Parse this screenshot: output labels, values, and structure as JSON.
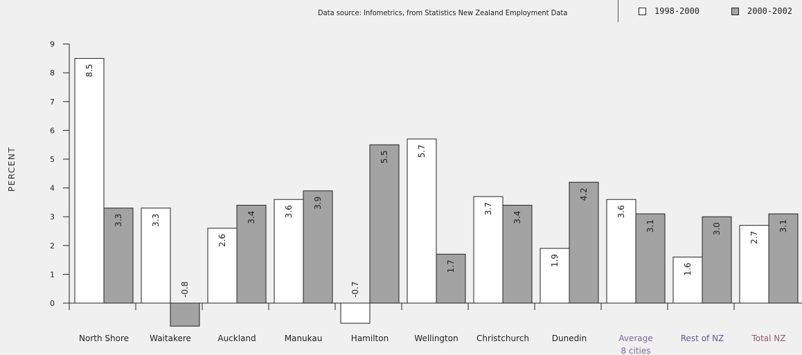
{
  "header": {
    "source": "Data source: Infometrics, from Statistics New Zealand Employment Data"
  },
  "legend": [
    {
      "label": "1998-2000",
      "color": "#ffffff"
    },
    {
      "label": "2000-2002",
      "color": "#a3a3a3"
    }
  ],
  "chart_data": {
    "type": "bar",
    "title": "",
    "xlabel": "",
    "ylabel": "PERCENT",
    "ylim": [
      -0.8,
      9
    ],
    "yticks": [
      0,
      1,
      2,
      3,
      4,
      5,
      6,
      7,
      8,
      9
    ],
    "grid": false,
    "legend_position": "top-right",
    "categories": [
      "North Shore",
      "Waitakere",
      "Auckland",
      "Manukau",
      "Hamilton",
      "Wellington",
      "Christchurch",
      "Dunedin",
      "Average\n8 cities",
      "Rest of NZ",
      "Total NZ"
    ],
    "category_colors": [
      "#222222",
      "#222222",
      "#222222",
      "#222222",
      "#222222",
      "#222222",
      "#222222",
      "#222222",
      "#7a6a9a",
      "#5b5b8f",
      "#8c5a6e"
    ],
    "series": [
      {
        "name": "1998-2000",
        "color": "#ffffff",
        "values": [
          8.5,
          3.3,
          2.6,
          3.6,
          -0.7,
          5.7,
          3.7,
          1.9,
          3.6,
          1.6,
          2.7
        ],
        "labels": [
          "8.5",
          "3.3",
          "2.6",
          "3.6",
          "-0.7",
          "5.7",
          "3.7",
          "1.9",
          "3.6",
          "1.6",
          "2.7"
        ]
      },
      {
        "name": "2000-2002",
        "color": "#a3a3a3",
        "values": [
          3.3,
          -0.8,
          3.4,
          3.9,
          5.5,
          1.7,
          3.4,
          4.2,
          3.1,
          3.0,
          3.1
        ],
        "labels": [
          "3.3",
          "-0.8",
          "3.4",
          "3.9",
          "5.5",
          "1.7",
          "3.4",
          "4.2",
          "3.1",
          "3.0",
          "3.1"
        ]
      }
    ]
  }
}
